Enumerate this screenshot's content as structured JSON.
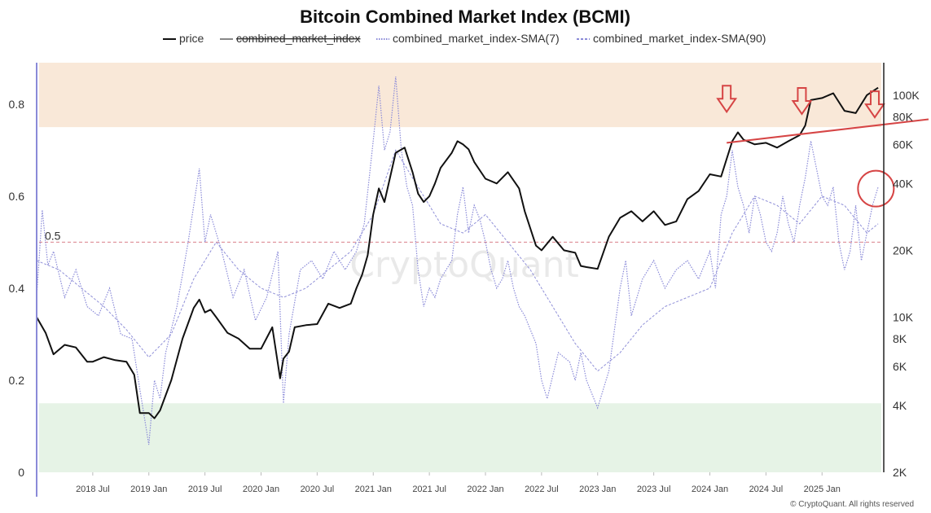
{
  "chart_data": {
    "type": "line",
    "title": "Bitcoin Combined Market Index (BCMI)",
    "legend": [
      {
        "label": "price",
        "color": "#111111",
        "style": "solid",
        "strike": false
      },
      {
        "label": "combined_market_index",
        "color": "#888888",
        "style": "solid",
        "strike": true
      },
      {
        "label": "combined_market_index-SMA(7)",
        "color": "#8a8ad8",
        "style": "dotted",
        "strike": false
      },
      {
        "label": "combined_market_index-SMA(90)",
        "color": "#8a8ad8",
        "style": "dashed",
        "strike": false
      }
    ],
    "x_ticks": [
      "2018 Jul",
      "2019 Jan",
      "2019 Jul",
      "2020 Jan",
      "2020 Jul",
      "2021 Jan",
      "2021 Jul",
      "2022 Jan",
      "2022 Jul",
      "2023 Jan",
      "2023 Jul",
      "2024 Jan",
      "2024 Jul",
      "2025 Jan"
    ],
    "x_range": [
      2018.0,
      2025.55
    ],
    "y_left": {
      "ticks": [
        "0",
        "0.2",
        "0.4",
        "0.6",
        "0.8"
      ],
      "values": [
        0,
        0.2,
        0.4,
        0.6,
        0.8
      ],
      "range": [
        0,
        0.89
      ]
    },
    "y_right": {
      "ticks": [
        "2K",
        "4K",
        "6K",
        "8K",
        "10K",
        "20K",
        "40K",
        "60K",
        "80K",
        "100K"
      ],
      "values": [
        2000,
        4000,
        6000,
        8000,
        10000,
        20000,
        40000,
        60000,
        80000,
        100000
      ],
      "range": [
        2000,
        140000
      ],
      "scale": "log"
    },
    "bands": [
      {
        "name": "overheated-zone",
        "from": 0.75,
        "to": 0.89,
        "color": "#f9e8d8"
      },
      {
        "name": "undervalued-zone",
        "from": 0.0,
        "to": 0.15,
        "color": "#e6f3e6"
      }
    ],
    "reference_line": {
      "value": 0.5,
      "label": "0.5",
      "color": "#d9808a"
    },
    "series": [
      {
        "name": "price",
        "unit": "USD",
        "x": [
          2018.0,
          2018.08,
          2018.15,
          2018.25,
          2018.35,
          2018.45,
          2018.5,
          2018.6,
          2018.7,
          2018.8,
          2018.87,
          2018.92,
          2019.0,
          2019.05,
          2019.1,
          2019.2,
          2019.3,
          2019.4,
          2019.45,
          2019.5,
          2019.55,
          2019.6,
          2019.7,
          2019.8,
          2019.9,
          2020.0,
          2020.1,
          2020.17,
          2020.2,
          2020.25,
          2020.3,
          2020.4,
          2020.5,
          2020.6,
          2020.7,
          2020.8,
          2020.85,
          2020.9,
          2020.95,
          2021.0,
          2021.05,
          2021.1,
          2021.2,
          2021.28,
          2021.35,
          2021.4,
          2021.45,
          2021.5,
          2021.55,
          2021.6,
          2021.7,
          2021.75,
          2021.8,
          2021.85,
          2021.9,
          2022.0,
          2022.1,
          2022.2,
          2022.3,
          2022.35,
          2022.45,
          2022.5,
          2022.6,
          2022.7,
          2022.8,
          2022.85,
          2022.9,
          2023.0,
          2023.1,
          2023.2,
          2023.3,
          2023.4,
          2023.5,
          2023.6,
          2023.7,
          2023.8,
          2023.9,
          2024.0,
          2024.1,
          2024.2,
          2024.25,
          2024.3,
          2024.4,
          2024.5,
          2024.6,
          2024.7,
          2024.8,
          2024.85,
          2024.9,
          2025.0,
          2025.1,
          2025.2,
          2025.3,
          2025.4,
          2025.5
        ],
        "y": [
          10000,
          8500,
          6800,
          7500,
          7300,
          6300,
          6300,
          6600,
          6400,
          6300,
          5500,
          3700,
          3700,
          3500,
          3800,
          5200,
          8000,
          11000,
          12000,
          10500,
          10800,
          10000,
          8500,
          8000,
          7200,
          7200,
          9000,
          5300,
          6500,
          7000,
          9000,
          9200,
          9300,
          11500,
          11000,
          11500,
          13500,
          15500,
          19000,
          29000,
          38000,
          33000,
          55000,
          58000,
          45000,
          36000,
          33000,
          35000,
          40000,
          47000,
          55000,
          62000,
          60000,
          57000,
          50000,
          42000,
          40000,
          45000,
          38000,
          30000,
          21000,
          20000,
          23000,
          20000,
          19500,
          17000,
          16800,
          16500,
          23000,
          28000,
          30000,
          27000,
          30000,
          26000,
          27000,
          34000,
          37000,
          44000,
          43000,
          62000,
          68000,
          63000,
          60000,
          61000,
          58000,
          62000,
          66000,
          73000,
          95000,
          97000,
          102000,
          85000,
          83000,
          100000,
          108000
        ]
      },
      {
        "name": "combined_market_index-SMA(7)",
        "x": [
          2018.0,
          2018.05,
          2018.1,
          2018.15,
          2018.25,
          2018.35,
          2018.45,
          2018.55,
          2018.65,
          2018.75,
          2018.85,
          2018.92,
          2019.0,
          2019.05,
          2019.1,
          2019.15,
          2019.25,
          2019.35,
          2019.45,
          2019.5,
          2019.55,
          2019.65,
          2019.75,
          2019.85,
          2019.95,
          2020.05,
          2020.15,
          2020.2,
          2020.25,
          2020.35,
          2020.45,
          2020.55,
          2020.65,
          2020.75,
          2020.85,
          2020.92,
          2021.0,
          2021.05,
          2021.1,
          2021.15,
          2021.2,
          2021.25,
          2021.3,
          2021.35,
          2021.4,
          2021.45,
          2021.5,
          2021.55,
          2021.6,
          2021.7,
          2021.75,
          2021.8,
          2021.85,
          2021.9,
          2021.95,
          2022.0,
          2022.05,
          2022.1,
          2022.15,
          2022.2,
          2022.25,
          2022.3,
          2022.35,
          2022.45,
          2022.5,
          2022.55,
          2022.65,
          2022.75,
          2022.8,
          2022.85,
          2022.9,
          2023.0,
          2023.1,
          2023.2,
          2023.25,
          2023.3,
          2023.4,
          2023.5,
          2023.6,
          2023.7,
          2023.8,
          2023.9,
          2024.0,
          2024.05,
          2024.1,
          2024.15,
          2024.2,
          2024.25,
          2024.3,
          2024.35,
          2024.4,
          2024.45,
          2024.5,
          2024.55,
          2024.6,
          2024.65,
          2024.7,
          2024.75,
          2024.8,
          2024.85,
          2024.9,
          2024.95,
          2025.0,
          2025.05,
          2025.1,
          2025.15,
          2025.2,
          2025.25,
          2025.3,
          2025.35,
          2025.4,
          2025.45,
          2025.5
        ],
        "y": [
          0.38,
          0.57,
          0.45,
          0.48,
          0.38,
          0.44,
          0.36,
          0.34,
          0.4,
          0.3,
          0.29,
          0.18,
          0.06,
          0.2,
          0.16,
          0.26,
          0.36,
          0.5,
          0.66,
          0.5,
          0.56,
          0.48,
          0.38,
          0.44,
          0.33,
          0.38,
          0.48,
          0.15,
          0.3,
          0.44,
          0.46,
          0.42,
          0.48,
          0.44,
          0.48,
          0.54,
          0.72,
          0.84,
          0.7,
          0.74,
          0.86,
          0.7,
          0.62,
          0.58,
          0.44,
          0.36,
          0.4,
          0.38,
          0.42,
          0.46,
          0.56,
          0.62,
          0.52,
          0.58,
          0.55,
          0.5,
          0.44,
          0.4,
          0.42,
          0.46,
          0.4,
          0.36,
          0.34,
          0.28,
          0.2,
          0.16,
          0.26,
          0.24,
          0.2,
          0.26,
          0.2,
          0.14,
          0.22,
          0.4,
          0.46,
          0.34,
          0.42,
          0.46,
          0.4,
          0.44,
          0.46,
          0.42,
          0.48,
          0.4,
          0.56,
          0.6,
          0.7,
          0.62,
          0.58,
          0.52,
          0.6,
          0.56,
          0.5,
          0.48,
          0.52,
          0.6,
          0.54,
          0.5,
          0.58,
          0.64,
          0.72,
          0.66,
          0.6,
          0.58,
          0.62,
          0.5,
          0.44,
          0.48,
          0.58,
          0.46,
          0.52,
          0.58,
          0.62
        ]
      },
      {
        "name": "combined_market_index-SMA(90)",
        "x": [
          2018.0,
          2018.2,
          2018.4,
          2018.6,
          2018.8,
          2019.0,
          2019.2,
          2019.4,
          2019.6,
          2019.8,
          2020.0,
          2020.2,
          2020.4,
          2020.6,
          2020.8,
          2021.0,
          2021.2,
          2021.4,
          2021.6,
          2021.8,
          2022.0,
          2022.2,
          2022.4,
          2022.6,
          2022.8,
          2023.0,
          2023.2,
          2023.4,
          2023.6,
          2023.8,
          2024.0,
          2024.2,
          2024.4,
          2024.6,
          2024.8,
          2025.0,
          2025.2,
          2025.4,
          2025.5
        ],
        "y": [
          0.46,
          0.44,
          0.4,
          0.36,
          0.31,
          0.25,
          0.3,
          0.42,
          0.5,
          0.44,
          0.4,
          0.38,
          0.4,
          0.44,
          0.48,
          0.56,
          0.7,
          0.62,
          0.54,
          0.52,
          0.56,
          0.5,
          0.44,
          0.36,
          0.28,
          0.22,
          0.26,
          0.32,
          0.36,
          0.38,
          0.4,
          0.52,
          0.6,
          0.58,
          0.54,
          0.6,
          0.58,
          0.52,
          0.54
        ]
      }
    ],
    "annotations": {
      "trendline": {
        "x": [
          2024.15,
          2025.55
        ],
        "price": [
          61000,
          74000
        ],
        "color": "#d64545"
      },
      "arrows": [
        {
          "x": 2024.15,
          "price": 90000
        },
        {
          "x": 2024.82,
          "price": 88000
        },
        {
          "x": 2025.47,
          "price": 85000
        }
      ],
      "circle": {
        "x": 2025.48,
        "value": 0.62
      }
    },
    "watermark": "CryptoQuant",
    "credit": "© CryptoQuant. All rights reserved"
  }
}
